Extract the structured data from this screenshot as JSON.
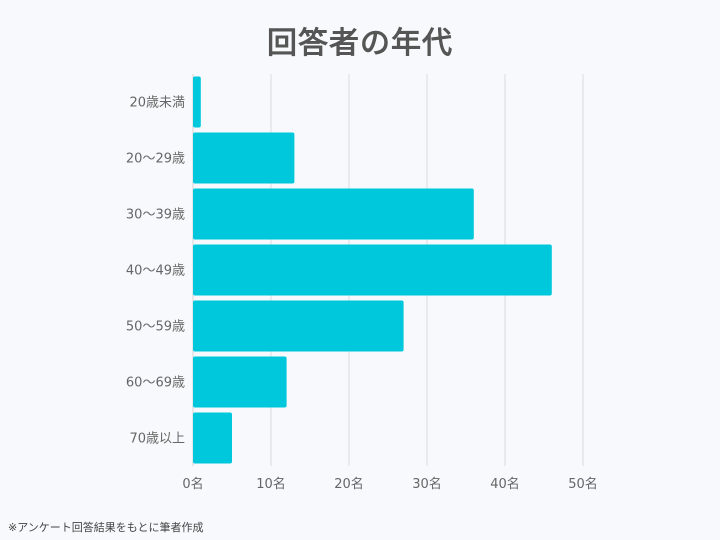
{
  "colors": {
    "bar": "#00c8dc",
    "grid": "#d9dbe0",
    "text": "#666666",
    "title": "#555555",
    "background": "#f8f9fc"
  },
  "chart_data": {
    "type": "bar",
    "orientation": "horizontal",
    "title": "回答者の年代",
    "categories": [
      "20歳未満",
      "20～29歳",
      "30～39歳",
      "40～49歳",
      "50～59歳",
      "60～69歳",
      "70歳以上"
    ],
    "values": [
      1,
      13,
      36,
      46,
      27,
      12,
      5
    ],
    "xlim": [
      0,
      50
    ],
    "xticks": [
      0,
      10,
      20,
      30,
      40,
      50
    ],
    "tick_labels": [
      "0名",
      "10名",
      "20名",
      "30名",
      "40名",
      "50名"
    ],
    "grid": true,
    "legend": "none"
  },
  "footnote": "※アンケート回答結果をもとに筆者作成"
}
